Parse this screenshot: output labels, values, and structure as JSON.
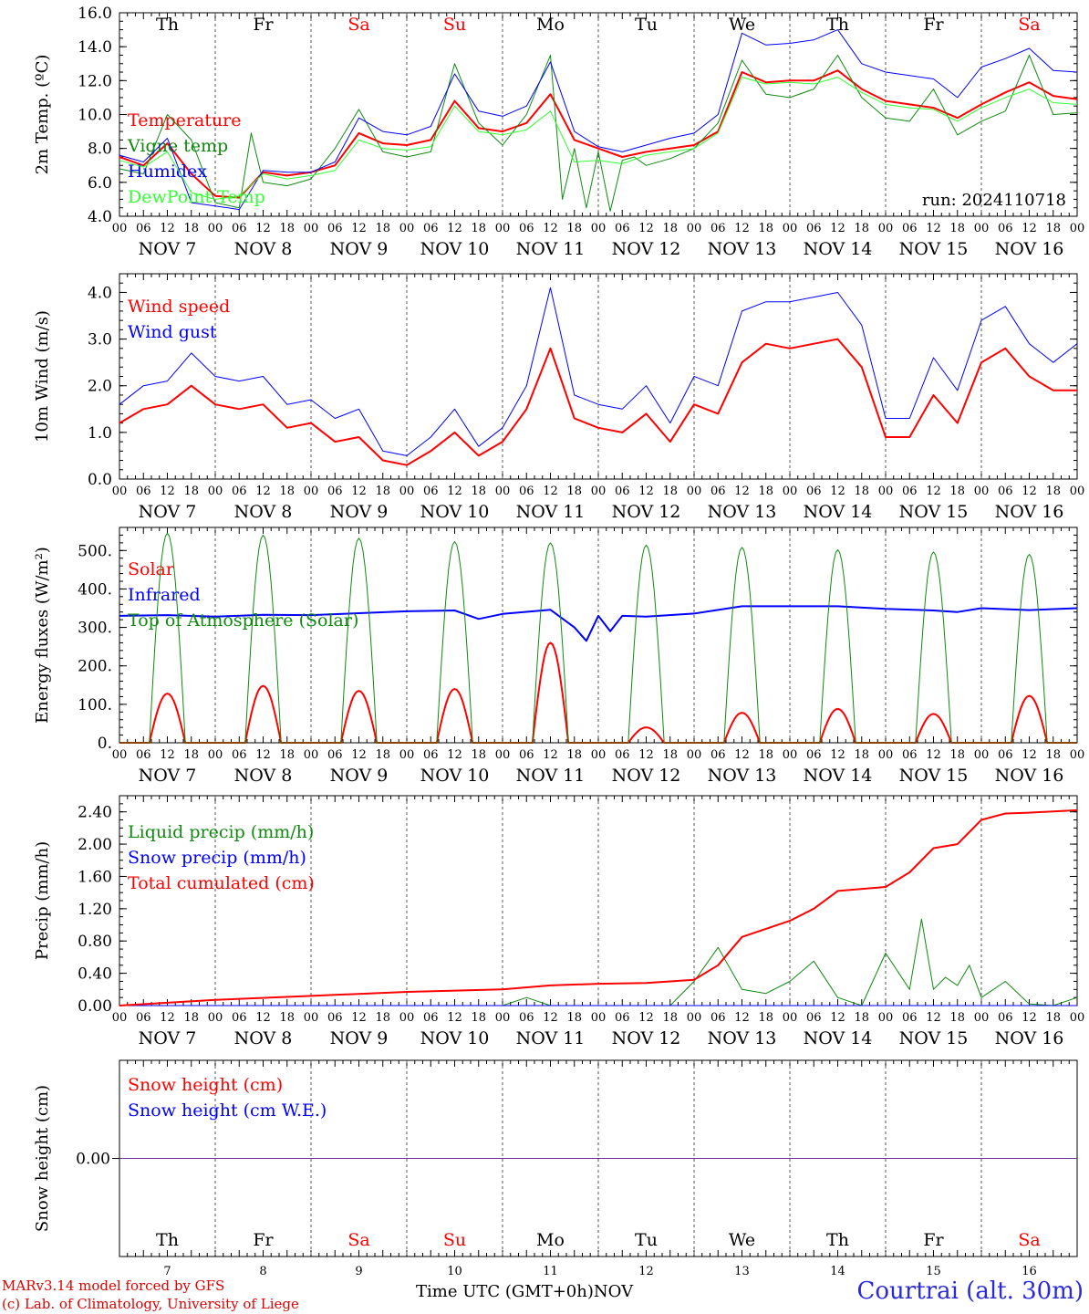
{
  "days": [
    {
      "abbr": "Th",
      "date": "NOV  7",
      "num": "7",
      "weekend": false
    },
    {
      "abbr": "Fr",
      "date": "NOV  8",
      "num": "8",
      "weekend": false
    },
    {
      "abbr": "Sa",
      "date": "NOV  9",
      "num": "9",
      "weekend": true
    },
    {
      "abbr": "Su",
      "date": "NOV 10",
      "num": "10",
      "weekend": true
    },
    {
      "abbr": "Mo",
      "date": "NOV 11",
      "num": "11",
      "weekend": false
    },
    {
      "abbr": "Tu",
      "date": "NOV 12",
      "num": "12",
      "weekend": false
    },
    {
      "abbr": "We",
      "date": "NOV 13",
      "num": "13",
      "weekend": false
    },
    {
      "abbr": "Th",
      "date": "NOV 14",
      "num": "14",
      "weekend": false
    },
    {
      "abbr": "Fr",
      "date": "NOV 15",
      "num": "15",
      "weekend": false
    },
    {
      "abbr": "Sa",
      "date": "NOV 16",
      "num": "16",
      "weekend": true
    }
  ],
  "hour_ticks": [
    "00",
    "06",
    "12",
    "18"
  ],
  "colors": {
    "red": "#ff0000",
    "dark_green": "#0f8a0f",
    "light_green": "#33ff33",
    "blue": "#0000ff",
    "purple": "#7030a0",
    "weekend_red": "#ff0000",
    "text": "#000000"
  },
  "chart_data": [
    {
      "id": "temp",
      "type": "line",
      "ylabel": "2m Temp. (ºC)",
      "ylim": [
        4.0,
        16.0
      ],
      "yticks": [
        "4.0",
        "6.0",
        "8.0",
        "10.0",
        "12.0",
        "14.0",
        "16.0"
      ],
      "x_unit": "hours since NOV 7 00 UTC",
      "annotation": "run: 2024110718",
      "show_day_abbr": true,
      "show_dates": true,
      "series": [
        {
          "name": "Temperature",
          "color": "#ff0000",
          "width": 2,
          "x": [
            0,
            6,
            12,
            18,
            24,
            30,
            36,
            42,
            48,
            54,
            60,
            66,
            72,
            78,
            84,
            90,
            96,
            102,
            108,
            114,
            120,
            126,
            132,
            138,
            144,
            150,
            156,
            162,
            168,
            174,
            180,
            186,
            192,
            198,
            204,
            210,
            216,
            222,
            228,
            234,
            240
          ],
          "y": [
            7.5,
            7.0,
            8.3,
            6.5,
            5.2,
            5.1,
            6.6,
            6.4,
            6.6,
            7.0,
            8.9,
            8.3,
            8.2,
            8.5,
            10.8,
            9.2,
            9.0,
            9.5,
            11.2,
            8.5,
            8.0,
            7.5,
            7.8,
            8.0,
            8.2,
            9.0,
            12.5,
            11.9,
            12.0,
            12.0,
            12.6,
            11.5,
            10.8,
            10.6,
            10.4,
            9.8,
            10.6,
            11.3,
            11.9,
            11.1,
            10.9
          ]
        },
        {
          "name": "Vigne temp",
          "color": "#0f8a0f",
          "width": 1,
          "x": [
            0,
            6,
            12,
            18,
            24,
            30,
            33,
            36,
            42,
            48,
            54,
            60,
            66,
            72,
            78,
            84,
            90,
            96,
            102,
            108,
            111,
            114,
            117,
            120,
            123,
            126,
            129,
            132,
            138,
            144,
            150,
            156,
            162,
            168,
            174,
            180,
            186,
            192,
            198,
            204,
            210,
            216,
            222,
            228,
            234,
            240
          ],
          "y": [
            6.8,
            6.5,
            10.0,
            8.5,
            4.8,
            4.5,
            8.9,
            6.0,
            5.8,
            6.2,
            8.0,
            10.3,
            7.8,
            7.5,
            7.8,
            13.0,
            9.5,
            8.2,
            10.0,
            13.5,
            5.0,
            8.0,
            4.5,
            7.8,
            4.3,
            7.3,
            7.5,
            7.0,
            7.4,
            8.0,
            9.5,
            13.2,
            11.2,
            11.0,
            11.5,
            13.5,
            11.0,
            9.8,
            9.6,
            11.5,
            8.8,
            9.6,
            10.2,
            13.5,
            10.0,
            10.1
          ]
        },
        {
          "name": "Humidex",
          "color": "#0000ff",
          "width": 1,
          "x": [
            0,
            6,
            12,
            18,
            24,
            30,
            36,
            42,
            48,
            54,
            60,
            66,
            72,
            78,
            84,
            90,
            96,
            102,
            108,
            114,
            120,
            126,
            132,
            138,
            144,
            150,
            156,
            162,
            168,
            174,
            180,
            186,
            192,
            198,
            204,
            210,
            216,
            222,
            228,
            234,
            240
          ],
          "y": [
            7.6,
            7.2,
            8.6,
            4.8,
            4.6,
            4.4,
            6.7,
            6.6,
            6.6,
            7.2,
            9.8,
            9.0,
            8.8,
            9.3,
            12.4,
            10.2,
            9.9,
            10.5,
            13.1,
            9.0,
            8.1,
            7.8,
            8.2,
            8.6,
            8.9,
            10.0,
            14.8,
            14.1,
            14.2,
            14.4,
            15.0,
            13.0,
            12.5,
            12.3,
            12.1,
            11.0,
            12.8,
            13.3,
            13.9,
            12.6,
            12.5
          ]
        },
        {
          "name": "DewPoint Temp",
          "color": "#33ff33",
          "width": 1,
          "x": [
            0,
            6,
            12,
            18,
            24,
            30,
            36,
            42,
            48,
            54,
            60,
            66,
            72,
            78,
            84,
            90,
            96,
            102,
            108,
            114,
            120,
            126,
            132,
            138,
            144,
            150,
            156,
            162,
            168,
            174,
            180,
            186,
            192,
            198,
            204,
            210,
            216,
            222,
            228,
            234,
            240
          ],
          "y": [
            7.3,
            6.9,
            7.8,
            5.4,
            5.0,
            5.2,
            6.5,
            6.2,
            6.4,
            6.7,
            8.5,
            8.0,
            7.9,
            8.1,
            10.5,
            9.0,
            8.8,
            9.1,
            10.2,
            7.2,
            7.3,
            7.1,
            7.6,
            7.8,
            8.0,
            8.9,
            12.2,
            11.8,
            11.9,
            11.8,
            12.2,
            11.3,
            10.6,
            10.4,
            10.3,
            9.6,
            10.4,
            11.0,
            11.5,
            10.7,
            10.6
          ]
        }
      ]
    },
    {
      "id": "wind",
      "type": "line",
      "ylabel": "10m Wind (m/s)",
      "ylim": [
        0.0,
        4.4
      ],
      "yticks": [
        "0.0",
        "1.0",
        "2.0",
        "3.0",
        "4.0"
      ],
      "show_day_abbr": false,
      "show_dates": true,
      "series": [
        {
          "name": "Wind speed",
          "color": "#ff0000",
          "width": 2,
          "x": [
            0,
            6,
            12,
            18,
            24,
            30,
            36,
            42,
            48,
            54,
            60,
            66,
            72,
            78,
            84,
            90,
            96,
            102,
            108,
            114,
            120,
            126,
            132,
            138,
            144,
            150,
            156,
            162,
            168,
            174,
            180,
            186,
            192,
            198,
            204,
            210,
            216,
            222,
            228,
            234,
            240
          ],
          "y": [
            1.2,
            1.5,
            1.6,
            2.0,
            1.6,
            1.5,
            1.6,
            1.1,
            1.2,
            0.8,
            0.9,
            0.4,
            0.3,
            0.6,
            1.0,
            0.5,
            0.8,
            1.5,
            2.8,
            1.3,
            1.1,
            1.0,
            1.4,
            0.8,
            1.6,
            1.4,
            2.5,
            2.9,
            2.8,
            2.9,
            3.0,
            2.4,
            0.9,
            0.9,
            1.8,
            1.2,
            2.5,
            2.8,
            2.2,
            1.9,
            1.9
          ]
        },
        {
          "name": "Wind gust",
          "color": "#0000ff",
          "width": 1,
          "x": [
            0,
            6,
            12,
            18,
            24,
            30,
            36,
            42,
            48,
            54,
            60,
            66,
            72,
            78,
            84,
            90,
            96,
            102,
            108,
            114,
            120,
            126,
            132,
            138,
            144,
            150,
            156,
            162,
            168,
            174,
            180,
            186,
            192,
            198,
            204,
            210,
            216,
            222,
            228,
            234,
            240
          ],
          "y": [
            1.6,
            2.0,
            2.1,
            2.7,
            2.2,
            2.1,
            2.2,
            1.6,
            1.7,
            1.3,
            1.5,
            0.6,
            0.5,
            0.9,
            1.5,
            0.7,
            1.1,
            2.0,
            4.1,
            1.8,
            1.6,
            1.5,
            2.0,
            1.2,
            2.2,
            2.0,
            3.6,
            3.8,
            3.8,
            3.9,
            4.0,
            3.3,
            1.3,
            1.3,
            2.6,
            1.9,
            3.4,
            3.7,
            2.9,
            2.5,
            2.9
          ]
        }
      ]
    },
    {
      "id": "flux",
      "type": "line",
      "ylabel": "Energy fluxes (W/m²)",
      "ylim": [
        0,
        560
      ],
      "yticks": [
        "0.",
        "100.",
        "200.",
        "300.",
        "400.",
        "500."
      ],
      "show_day_abbr": false,
      "show_dates": true,
      "series": [
        {
          "name": "Solar",
          "color": "#ff0000",
          "width": 2,
          "diurnal": true,
          "sunrise": 7.5,
          "sunset": 16.5,
          "peaks": [
            128,
            148,
            135,
            140,
            260,
            40,
            78,
            88,
            75,
            122
          ]
        },
        {
          "name": "Infrared",
          "color": "#0000ff",
          "width": 2,
          "x": [
            0,
            12,
            24,
            36,
            48,
            60,
            72,
            84,
            90,
            96,
            108,
            114,
            117,
            120,
            123,
            126,
            132,
            144,
            156,
            168,
            180,
            192,
            204,
            210,
            216,
            228,
            240
          ],
          "y": [
            330,
            332,
            328,
            333,
            332,
            337,
            342,
            344,
            322,
            335,
            346,
            300,
            265,
            330,
            290,
            330,
            328,
            336,
            355,
            355,
            355,
            348,
            344,
            340,
            350,
            345,
            350
          ]
        },
        {
          "name": "Top of Atmosphere (Solar)",
          "color": "#0f8a0f",
          "width": 1,
          "diurnal": true,
          "sunrise": 7.5,
          "sunset": 16.5,
          "peaks": [
            545,
            540,
            532,
            523,
            520,
            514,
            508,
            502,
            496,
            490
          ]
        }
      ]
    },
    {
      "id": "precip",
      "type": "line",
      "ylabel": "Precip (mm/h)",
      "ylim": [
        0.0,
        2.6
      ],
      "yticks": [
        "0.00",
        "0.40",
        "0.80",
        "1.20",
        "1.60",
        "2.00",
        "2.40"
      ],
      "show_day_abbr": false,
      "show_dates": true,
      "series": [
        {
          "name": "Liquid precip (mm/h)",
          "color": "#0f8a0f",
          "width": 1,
          "x": [
            0,
            48,
            96,
            102,
            108,
            114,
            120,
            126,
            132,
            138,
            144,
            150,
            156,
            162,
            168,
            174,
            180,
            186,
            192,
            198,
            201,
            204,
            207,
            210,
            213,
            216,
            222,
            228,
            234,
            240
          ],
          "y": [
            0,
            0,
            0,
            0.1,
            0,
            0,
            0,
            0,
            0,
            0,
            0.3,
            0.72,
            0.2,
            0.15,
            0.3,
            0.55,
            0.1,
            0.0,
            0.65,
            0.2,
            1.07,
            0.2,
            0.35,
            0.25,
            0.5,
            0.1,
            0.3,
            0.02,
            0.0,
            0.1
          ]
        },
        {
          "name": "Snow precip (mm/h)",
          "color": "#0000ff",
          "width": 1,
          "x": [
            0,
            240
          ],
          "y": [
            0,
            0
          ]
        },
        {
          "name": "Total cumulated (cm)",
          "color": "#ff0000",
          "width": 2,
          "x": [
            0,
            24,
            48,
            72,
            96,
            108,
            120,
            132,
            144,
            150,
            156,
            168,
            174,
            180,
            192,
            198,
            204,
            210,
            216,
            222,
            228,
            240
          ],
          "y": [
            0.0,
            0.07,
            0.12,
            0.17,
            0.2,
            0.25,
            0.27,
            0.28,
            0.32,
            0.5,
            0.85,
            1.05,
            1.2,
            1.42,
            1.47,
            1.65,
            1.95,
            2.0,
            2.3,
            2.38,
            2.39,
            2.42
          ]
        }
      ]
    },
    {
      "id": "snow",
      "type": "line",
      "ylabel": "Snow height (cm)",
      "ylim": [
        -1.0,
        1.0
      ],
      "yticks": [
        "0.00"
      ],
      "show_day_abbr": true,
      "show_dates": false,
      "series": [
        {
          "name": "Snow height (cm)",
          "color": "#ff0000",
          "width": 1,
          "x": [
            0,
            240
          ],
          "y": [
            0,
            0
          ]
        },
        {
          "name": "Snow height (cm W.E.)",
          "color": "#0000ff",
          "width": 1,
          "x": [
            0,
            240
          ],
          "y": [
            0,
            0
          ]
        }
      ]
    }
  ],
  "footer": {
    "model_line1": "MARv3.14 model forced by GFS",
    "model_line2": "(c) Lab. of Climatology, University of Liege",
    "time_label": "Time UTC (GMT+0h)",
    "month_label": "NOV",
    "station": "Courtrai (alt. 30m)"
  }
}
